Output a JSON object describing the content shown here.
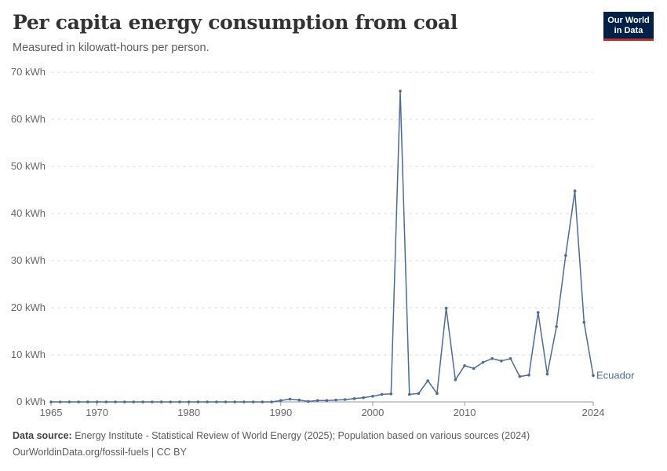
{
  "header": {
    "title": "Per capita energy consumption from coal",
    "subtitle": "Measured in kilowatt-hours per person."
  },
  "logo": {
    "line1": "Our World",
    "line2": "in Data"
  },
  "footer": {
    "source_label": "Data source:",
    "source_text": "Energy Institute - Statistical Review of World Energy (2025); Population based on various sources (2024)",
    "url_license": "OurWorldinData.org/fossil-fuels | CC BY"
  },
  "colors": {
    "series": "#4c6a9c",
    "grid": "#dddddd",
    "axis": "#999999"
  },
  "chart_data": {
    "type": "line",
    "title": "Per capita energy consumption from coal",
    "subtitle": "Measured in kilowatt-hours per person.",
    "xlabel": "",
    "ylabel": "",
    "xlim": [
      1965,
      2024
    ],
    "ylim": [
      0,
      70
    ],
    "y_ticks": [
      0,
      10,
      20,
      30,
      40,
      50,
      60,
      70
    ],
    "y_tick_labels": [
      "0 kWh",
      "10 kWh",
      "20 kWh",
      "30 kWh",
      "40 kWh",
      "50 kWh",
      "60 kWh",
      "70 kWh"
    ],
    "x_ticks": [
      1965,
      1970,
      1980,
      1990,
      2000,
      2010,
      2024
    ],
    "x_tick_labels": [
      "1965",
      "1970",
      "1980",
      "1990",
      "2000",
      "2010",
      "2024"
    ],
    "grid": "horizontal-dashed",
    "series": [
      {
        "name": "Ecuador",
        "x": [
          1965,
          1966,
          1967,
          1968,
          1969,
          1970,
          1971,
          1972,
          1973,
          1974,
          1975,
          1976,
          1977,
          1978,
          1979,
          1980,
          1981,
          1982,
          1983,
          1984,
          1985,
          1986,
          1987,
          1988,
          1989,
          1990,
          1991,
          1992,
          1993,
          1994,
          1995,
          1996,
          1997,
          1998,
          1999,
          2000,
          2001,
          2002,
          2003,
          2004,
          2005,
          2006,
          2007,
          2008,
          2009,
          2010,
          2011,
          2012,
          2013,
          2014,
          2015,
          2016,
          2017,
          2018,
          2019,
          2020,
          2021,
          2022,
          2023,
          2024
        ],
        "values": [
          0,
          0,
          0,
          0,
          0,
          0,
          0,
          0,
          0,
          0,
          0,
          0,
          0,
          0,
          0,
          0,
          0,
          0,
          0,
          0,
          0,
          0,
          0,
          0,
          0,
          0.3,
          0.6,
          0.4,
          0.1,
          0.3,
          0.3,
          0.4,
          0.5,
          0.7,
          0.9,
          1.2,
          1.6,
          1.7,
          66,
          1.6,
          1.8,
          4.5,
          1.8,
          19.9,
          4.7,
          7.7,
          7.1,
          8.4,
          9.2,
          8.7,
          9.2,
          5.4,
          5.7,
          19,
          5.9,
          16,
          31.1,
          44.8,
          16.9,
          5.6
        ]
      }
    ]
  }
}
